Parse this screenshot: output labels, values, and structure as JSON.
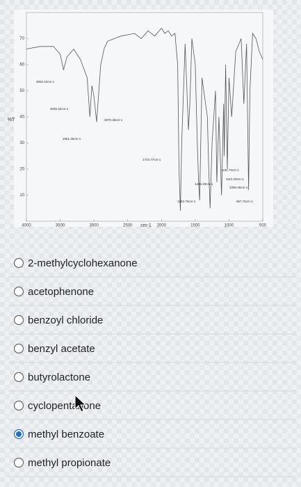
{
  "chart_data": {
    "type": "line",
    "y_label": "%T",
    "x_label": "cm-1",
    "xlim": [
      4000,
      500
    ],
    "xticks": [
      4000,
      3500,
      3000,
      2500,
      2000,
      1500,
      1000,
      500
    ],
    "ylim": [
      0,
      80
    ],
    "yticks": [
      10,
      20,
      30,
      40,
      50,
      60,
      70
    ],
    "color": "#555555",
    "x": [
      4000,
      3800,
      3600,
      3500,
      3450,
      3400,
      3300,
      3200,
      3100,
      3060,
      3030,
      3000,
      2960,
      2900,
      2850,
      2800,
      2600,
      2400,
      2300,
      2200,
      2100,
      2000,
      1950,
      1900,
      1850,
      1800,
      1760,
      1740,
      1720,
      1700,
      1650,
      1600,
      1580,
      1550,
      1500,
      1470,
      1450,
      1435,
      1400,
      1320,
      1300,
      1280,
      1250,
      1200,
      1180,
      1150,
      1110,
      1080,
      1070,
      1050,
      1025,
      1000,
      960,
      900,
      820,
      780,
      740,
      710,
      690,
      650,
      600,
      550,
      500
    ],
    "values": [
      66,
      67,
      67,
      64,
      58,
      63,
      66,
      62,
      55,
      40,
      52,
      48,
      38,
      60,
      66,
      69,
      71,
      72,
      70,
      73,
      71,
      74,
      72,
      73,
      71,
      72,
      60,
      20,
      4,
      30,
      68,
      35,
      45,
      70,
      60,
      30,
      15,
      8,
      55,
      40,
      20,
      5,
      30,
      50,
      15,
      40,
      10,
      45,
      25,
      60,
      20,
      55,
      40,
      65,
      70,
      45,
      68,
      12,
      50,
      72,
      70,
      65,
      62
    ],
    "annotations": [
      "3063.42cm-1",
      "3005.32cm-1",
      "2951.36cm-1",
      "2870.28cm-1",
      "1723.77cm-1",
      "1446.29cm-1",
      "1282.79cm-1",
      "1182.73cm-1",
      "1110.29cm-1",
      "1068.36cm-1",
      "967.76cm-1"
    ]
  },
  "options": [
    "2-methylcyclohexanone",
    "acetophenone",
    "benzoyl chloride",
    "benzyl acetate",
    "butyrolactone",
    "cyclopentanone",
    "methyl benzoate",
    "methyl propionate"
  ],
  "selected": 6
}
